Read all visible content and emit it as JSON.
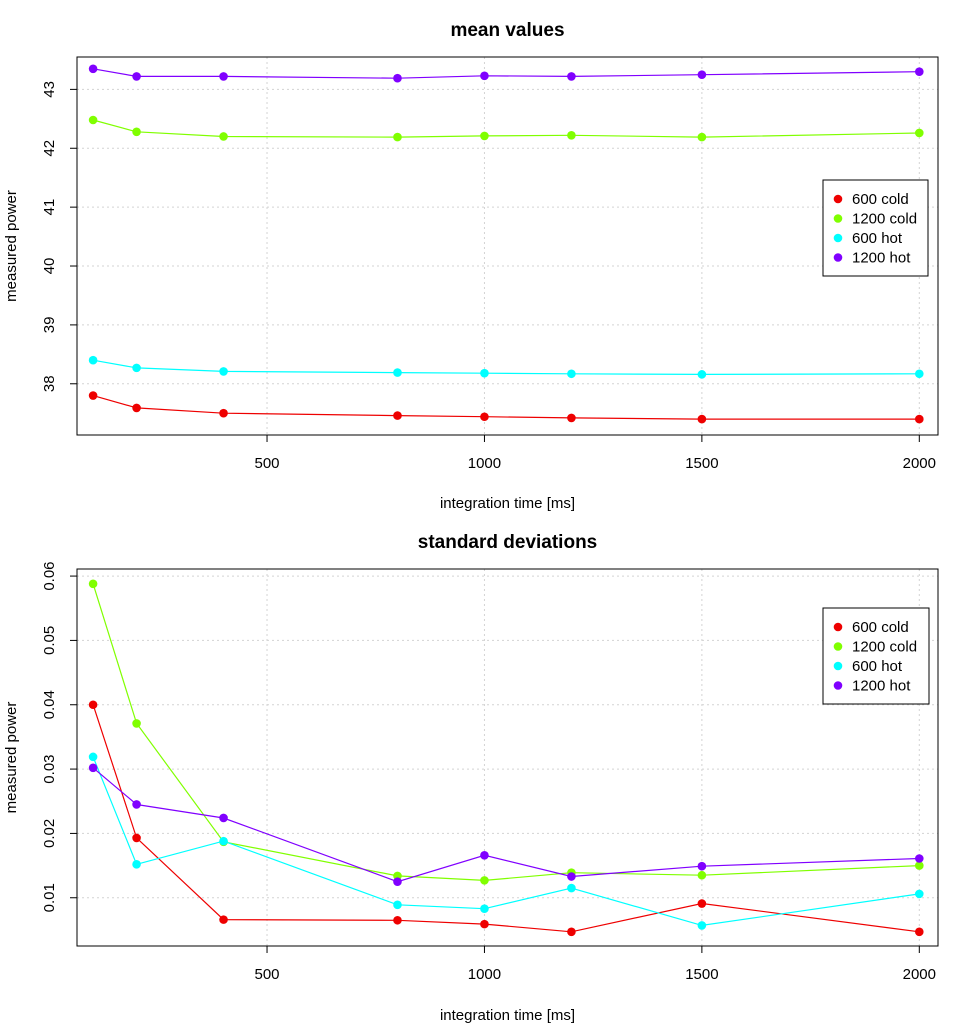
{
  "chart_data": [
    {
      "type": "line",
      "title": "mean values",
      "xlabel": "integration time [ms]",
      "ylabel": "measured power",
      "xlim": [
        63,
        2043
      ],
      "ylim": [
        37.13,
        43.55
      ],
      "xticks": [
        500,
        1000,
        1500,
        2000
      ],
      "yticks": [
        38,
        39,
        40,
        41,
        42,
        43
      ],
      "grid": true,
      "legend_position": "right",
      "x": [
        100,
        200,
        400,
        800,
        1000,
        1200,
        1500,
        2000
      ],
      "series": [
        {
          "name": "600 cold",
          "color": "#ee0000",
          "values": [
            37.8,
            37.59,
            37.5,
            37.46,
            37.44,
            37.42,
            37.4,
            37.4
          ]
        },
        {
          "name": "1200 cold",
          "color": "#80ff00",
          "values": [
            42.48,
            42.28,
            42.2,
            42.19,
            42.21,
            42.22,
            42.19,
            42.26
          ]
        },
        {
          "name": "600 hot",
          "color": "#00ffff",
          "values": [
            38.4,
            38.27,
            38.21,
            38.19,
            38.18,
            38.17,
            38.16,
            38.17
          ]
        },
        {
          "name": "1200 hot",
          "color": "#8000ff",
          "values": [
            43.35,
            43.22,
            43.22,
            43.19,
            43.23,
            43.22,
            43.25,
            43.3
          ]
        }
      ]
    },
    {
      "type": "line",
      "title": "standard deviations",
      "xlabel": "integration time [ms]",
      "ylabel": "measured power",
      "xlim": [
        63,
        2043
      ],
      "ylim": [
        0.0025,
        0.0611
      ],
      "xticks": [
        500,
        1000,
        1500,
        2000
      ],
      "yticks": [
        0.01,
        0.02,
        0.03,
        0.04,
        0.05,
        0.06
      ],
      "grid": true,
      "legend_position": "top-right",
      "x": [
        100,
        200,
        400,
        800,
        1000,
        1200,
        1500,
        2000
      ],
      "series": [
        {
          "name": "600 cold",
          "color": "#ee0000",
          "values": [
            0.04,
            0.0193,
            0.0066,
            0.0065,
            0.0059,
            0.0047,
            0.0091,
            0.0047
          ]
        },
        {
          "name": "1200 cold",
          "color": "#80ff00",
          "values": [
            0.0588,
            0.0371,
            0.0187,
            0.0134,
            0.0127,
            0.0139,
            0.0135,
            0.015
          ]
        },
        {
          "name": "600 hot",
          "color": "#00ffff",
          "values": [
            0.0319,
            0.0152,
            0.0188,
            0.0089,
            0.0083,
            0.0115,
            0.0057,
            0.0106
          ]
        },
        {
          "name": "1200 hot",
          "color": "#8000ff",
          "values": [
            0.0302,
            0.0245,
            0.0224,
            0.0125,
            0.0166,
            0.0133,
            0.0149,
            0.0161
          ]
        }
      ]
    }
  ]
}
